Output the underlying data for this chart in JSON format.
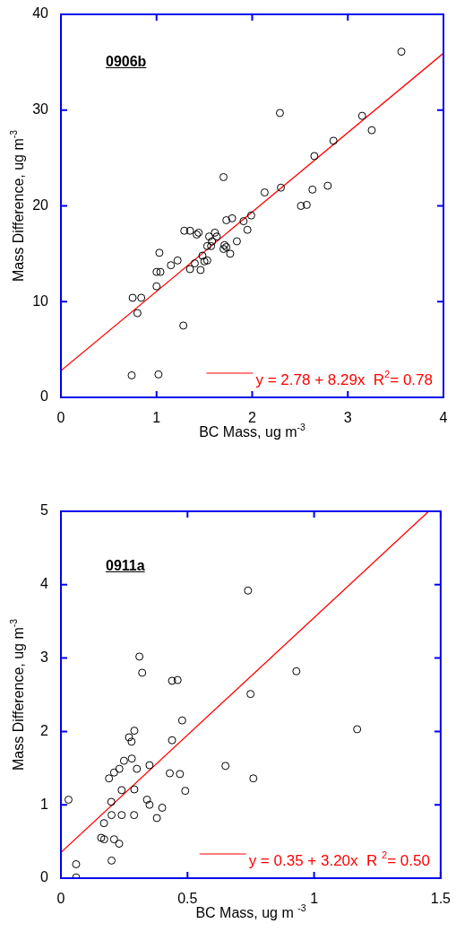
{
  "chart_data": [
    {
      "type": "scatter",
      "xlabel": "BC Mass, ug m$^{-3}$",
      "ylabel": "Mass Difference, ug m$^{-3}$",
      "annotations": [
        "0906b"
      ],
      "xlim": [
        0,
        4
      ],
      "ylim": [
        0,
        40
      ],
      "xticks": [
        0,
        1,
        2,
        3,
        4
      ],
      "yticks": [
        0,
        10,
        20,
        30,
        40
      ],
      "legend": "bottom right",
      "series": [
        {
          "color": "#000000",
          "x": [
            3.56,
            2.29,
            3.15,
            3.25,
            2.85,
            2.65,
            1.7,
            2.3,
            2.13,
            2.63,
            2.79,
            2.51,
            2.57,
            1.99,
            1.91,
            1.95,
            1.73,
            1.79,
            1.84,
            1.71,
            1.73,
            1.7,
            1.77,
            1.29,
            1.35,
            1.44,
            1.42,
            1.61,
            1.55,
            1.63,
            1.58,
            1.53,
            1.57,
            1.48,
            1.53,
            1.5,
            1.4,
            1.35,
            1.46,
            1.22,
            1.15,
            1.03,
            1.0,
            1.04,
            1.0,
            0.75,
            0.84,
            0.8,
            1.28,
            0.74,
            1.02
          ],
          "marker": "circle",
          "values": [
            36.1,
            29.7,
            29.4,
            27.9,
            26.8,
            25.2,
            23.0,
            21.9,
            21.4,
            21.7,
            22.1,
            20.0,
            20.1,
            19.0,
            18.4,
            17.5,
            18.5,
            18.7,
            16.3,
            15.9,
            15.7,
            15.5,
            15.0,
            17.4,
            17.4,
            17.2,
            17.0,
            17.2,
            16.8,
            16.8,
            16.3,
            15.8,
            15.8,
            14.8,
            14.3,
            14.2,
            14.0,
            13.4,
            13.3,
            14.3,
            13.8,
            15.1,
            13.1,
            13.1,
            11.6,
            10.4,
            10.4,
            8.8,
            7.5,
            2.3,
            2.4
          ]
        },
        {
          "type": "line",
          "name": "y = 2.78 + 8.29x  R$^{2}$= 0.78",
          "color": "#ff0000",
          "marker": "none",
          "x": [
            0,
            4
          ],
          "values": [
            2.78,
            35.94
          ]
        }
      ]
    },
    {
      "type": "scatter",
      "xlabel": "BC Mass, ug m $^{-3}$",
      "ylabel": "Mass Difference, ug m$^{-3}$",
      "annotations": [
        "0911a"
      ],
      "xlim": [
        0,
        1.5
      ],
      "ylim": [
        0,
        5
      ],
      "xticks": [
        0,
        0.5,
        1,
        1.5
      ],
      "yticks": [
        0,
        1,
        2,
        3,
        4,
        5
      ],
      "legend": "bottom right",
      "series": [
        {
          "color": "#000000",
          "x": [
            0.739,
            0.31,
            0.321,
            0.439,
            0.461,
            0.93,
            0.749,
            0.479,
            1.17,
            0.29,
            0.269,
            0.279,
            0.439,
            0.249,
            0.28,
            0.3,
            0.35,
            0.231,
            0.21,
            0.19,
            0.65,
            0.43,
            0.47,
            0.76,
            0.24,
            0.29,
            0.491,
            0.03,
            0.199,
            0.34,
            0.35,
            0.4,
            0.2,
            0.24,
            0.289,
            0.379,
            0.17,
            0.159,
            0.171,
            0.21,
            0.23,
            0.2,
            0.06,
            0.06
          ],
          "marker": "circle",
          "values": [
            3.92,
            3.02,
            2.8,
            2.69,
            2.7,
            2.82,
            2.51,
            2.15,
            2.03,
            2.01,
            1.92,
            1.86,
            1.88,
            1.6,
            1.63,
            1.49,
            1.54,
            1.49,
            1.44,
            1.36,
            1.53,
            1.43,
            1.42,
            1.36,
            1.2,
            1.21,
            1.19,
            1.07,
            1.04,
            1.07,
            1.0,
            0.96,
            0.86,
            0.86,
            0.86,
            0.82,
            0.75,
            0.55,
            0.53,
            0.53,
            0.47,
            0.24,
            0.19,
            0.01
          ]
        },
        {
          "type": "line",
          "name": "y = 0.35 + 3.20x  R $^{2}$= 0.50",
          "color": "#ff0000",
          "marker": "none",
          "x": [
            0,
            1.45
          ],
          "values": [
            0.35,
            4.99
          ]
        }
      ]
    }
  ]
}
